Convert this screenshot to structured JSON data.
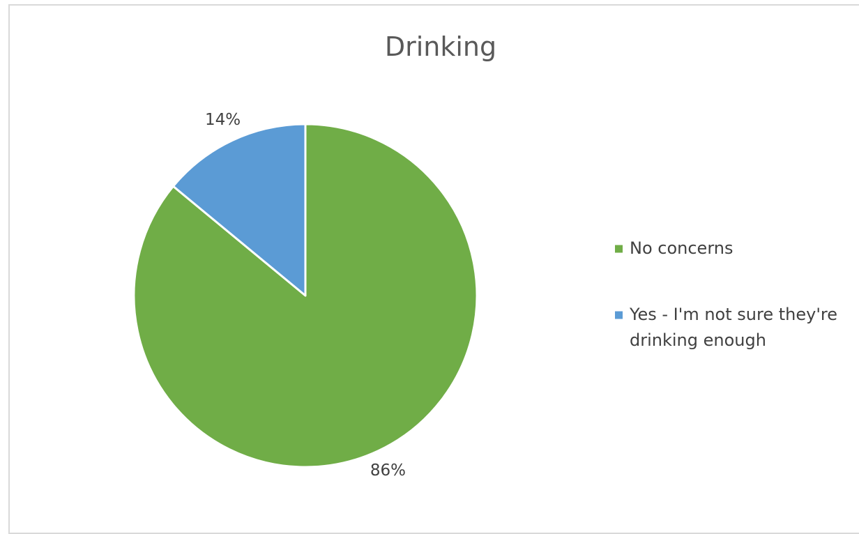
{
  "chart_data": {
    "type": "pie",
    "title": "Drinking",
    "categories": [
      "No concerns",
      "Yes - I'm not sure they're drinking enough"
    ],
    "values": [
      86,
      14
    ],
    "labels": [
      "86%",
      "14%"
    ],
    "colors": [
      "#70ad47",
      "#5b9bd5"
    ],
    "legend": {
      "position": "right",
      "entries": [
        {
          "lines": [
            "No concerns"
          ]
        },
        {
          "lines": [
            "Yes - I'm not sure they're",
            "drinking enough"
          ]
        }
      ]
    }
  }
}
